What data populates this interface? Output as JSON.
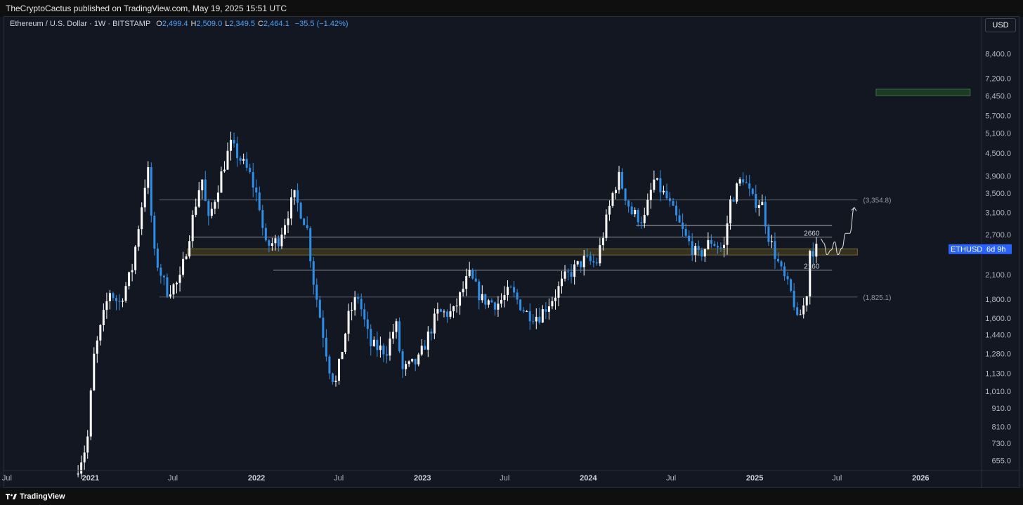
{
  "header": {
    "published": "TheCryptoCactus published on TradingView.com, May 19, 2025 15:51 UTC"
  },
  "legend": {
    "symbol": "Ethereum / U.S. Dollar · 1W · BITSTAMP",
    "o_label": "O",
    "o_value": "2,499.4",
    "h_label": "H",
    "h_value": "2,509.0",
    "l_label": "L",
    "l_value": "2,349.5",
    "c_label": "C",
    "c_value": "2,464.1",
    "change": "−35.5 (−1.42%)"
  },
  "currency_button": "USD",
  "footer": {
    "brand": "TradingView",
    "logo_icon": "tradingview-logo-icon"
  },
  "colors": {
    "background": "#131722",
    "up": "#ffffff",
    "down": "#2f8fe8",
    "zone_fill": "#3a3620",
    "zone_border": "#7a6e3a",
    "target_box": "#1e3a24",
    "target_box_border": "#3b6e44",
    "price_label_bg": "#2962ff"
  },
  "chart_data": {
    "type": "candlestick",
    "symbol": "ETHUSD",
    "timeframe": "1W",
    "price_scale": "log",
    "x_range": [
      "2020-06-25",
      "2026-05-15"
    ],
    "y_range": [
      620,
      9600
    ],
    "x_ticks": [
      {
        "date": "2020-07-01",
        "label": "Jul",
        "bold": false
      },
      {
        "date": "2021-01-01",
        "label": "2021",
        "bold": true
      },
      {
        "date": "2021-07-01",
        "label": "Jul",
        "bold": false
      },
      {
        "date": "2022-01-01",
        "label": "2022",
        "bold": true
      },
      {
        "date": "2022-07-01",
        "label": "Jul",
        "bold": false
      },
      {
        "date": "2023-01-01",
        "label": "2023",
        "bold": true
      },
      {
        "date": "2023-07-01",
        "label": "Jul",
        "bold": false
      },
      {
        "date": "2024-01-01",
        "label": "2024",
        "bold": true
      },
      {
        "date": "2024-07-01",
        "label": "Jul",
        "bold": false
      },
      {
        "date": "2025-01-01",
        "label": "2025",
        "bold": true
      },
      {
        "date": "2025-07-01",
        "label": "Jul",
        "bold": false
      },
      {
        "date": "2026-01-01",
        "label": "2026",
        "bold": true
      }
    ],
    "y_ticks": [
      {
        "value": 8400,
        "label": "8,400.0"
      },
      {
        "value": 7200,
        "label": "7,200.0"
      },
      {
        "value": 6450,
        "label": "6,450.0"
      },
      {
        "value": 5700,
        "label": "5,700.0"
      },
      {
        "value": 5100,
        "label": "5,100.0"
      },
      {
        "value": 4500,
        "label": "4,500.0"
      },
      {
        "value": 3900,
        "label": "3,900.0"
      },
      {
        "value": 3500,
        "label": "3,500.0"
      },
      {
        "value": 3100,
        "label": "3,100.0"
      },
      {
        "value": 2700,
        "label": "2,700.0"
      },
      {
        "value": 2100,
        "label": "2,100.0"
      },
      {
        "value": 1800,
        "label": "1,800.0"
      },
      {
        "value": 1600,
        "label": "1,600.0"
      },
      {
        "value": 1440,
        "label": "1,440.0"
      },
      {
        "value": 1280,
        "label": "1,280.0"
      },
      {
        "value": 1130,
        "label": "1,130.0"
      },
      {
        "value": 1010,
        "label": "1,010.0"
      },
      {
        "value": 910,
        "label": "910.0"
      },
      {
        "value": 810,
        "label": "810.0"
      },
      {
        "value": 730,
        "label": "730.0"
      },
      {
        "value": 655,
        "label": "655.0"
      }
    ],
    "price_path": [
      [
        "2020-12-01",
        600
      ],
      [
        "2020-12-28",
        730
      ],
      [
        "2021-01-11",
        1240
      ],
      [
        "2021-02-15",
        1900
      ],
      [
        "2021-03-08",
        1750
      ],
      [
        "2021-04-05",
        2150
      ],
      [
        "2021-05-10",
        4150
      ],
      [
        "2021-05-24",
        2400
      ],
      [
        "2021-06-21",
        1900
      ],
      [
        "2021-07-19",
        2000
      ],
      [
        "2021-08-23",
        3250
      ],
      [
        "2021-09-06",
        3900
      ],
      [
        "2021-09-20",
        2900
      ],
      [
        "2021-10-18",
        3900
      ],
      [
        "2021-11-08",
        4750
      ],
      [
        "2021-11-29",
        4350
      ],
      [
        "2021-12-20",
        3950
      ],
      [
        "2022-01-10",
        3300
      ],
      [
        "2022-01-24",
        2500
      ],
      [
        "2022-02-21",
        2600
      ],
      [
        "2022-03-28",
        3450
      ],
      [
        "2022-04-25",
        2850
      ],
      [
        "2022-05-09",
        2050
      ],
      [
        "2022-06-13",
        1180
      ],
      [
        "2022-06-27",
        1050
      ],
      [
        "2022-07-25",
        1600
      ],
      [
        "2022-08-15",
        1850
      ],
      [
        "2022-09-12",
        1350
      ],
      [
        "2022-10-17",
        1300
      ],
      [
        "2022-11-07",
        1550
      ],
      [
        "2022-11-21",
        1150
      ],
      [
        "2022-12-26",
        1220
      ],
      [
        "2023-02-06",
        1650
      ],
      [
        "2023-03-13",
        1650
      ],
      [
        "2023-04-17",
        2100
      ],
      [
        "2023-05-15",
        1800
      ],
      [
        "2023-06-19",
        1750
      ],
      [
        "2023-07-17",
        1900
      ],
      [
        "2023-08-21",
        1650
      ],
      [
        "2023-09-18",
        1620
      ],
      [
        "2023-10-23",
        1850
      ],
      [
        "2023-11-13",
        2050
      ],
      [
        "2023-12-25",
        2300
      ],
      [
        "2024-01-22",
        2250
      ],
      [
        "2024-02-26",
        3450
      ],
      [
        "2024-03-11",
        3900
      ],
      [
        "2024-04-08",
        3100
      ],
      [
        "2024-05-06",
        2950
      ],
      [
        "2024-05-27",
        3800
      ],
      [
        "2024-06-24",
        3400
      ],
      [
        "2024-08-05",
        2650
      ],
      [
        "2024-09-02",
        2350
      ],
      [
        "2024-09-30",
        2600
      ],
      [
        "2024-10-28",
        2450
      ],
      [
        "2024-11-11",
        3300
      ],
      [
        "2024-12-09",
        3900
      ],
      [
        "2024-12-30",
        3350
      ],
      [
        "2025-01-20",
        3300
      ],
      [
        "2025-02-03",
        2700
      ],
      [
        "2025-03-03",
        2150
      ],
      [
        "2025-03-31",
        1800
      ],
      [
        "2025-04-07",
        1550
      ],
      [
        "2025-04-28",
        1800
      ],
      [
        "2025-05-05",
        2450
      ],
      [
        "2025-05-19",
        2464
      ]
    ],
    "price_label": {
      "symbol": "ETHUSD",
      "countdown": "6d 9h",
      "value": 2464.1
    },
    "annotations": {
      "zone": {
        "from": "2021-08-02",
        "to": "2025-08-15",
        "low": 2375,
        "high": 2470
      },
      "target_box": {
        "from": "2025-09-25",
        "to": "2026-04-20",
        "low": 6450,
        "high": 6720
      },
      "levels": [
        {
          "value": 3354.8,
          "from": "2021-06-01",
          "to": "2025-08-15",
          "label": "(3,354.8)",
          "muted": true
        },
        {
          "value": 2860,
          "from": "2024-04-15",
          "to": "2025-06-20",
          "label": "",
          "muted": false
        },
        {
          "value": 2660,
          "from": "2021-08-09",
          "to": "2025-06-20",
          "label": "2660",
          "muted": false
        },
        {
          "value": 2160,
          "from": "2022-02-07",
          "to": "2025-06-20",
          "label": "2160",
          "muted": false
        },
        {
          "value": 1825.1,
          "from": "2021-06-01",
          "to": "2025-08-15",
          "label": "(1,825.1)",
          "muted": true
        }
      ],
      "projection": [
        [
          "2025-05-26",
          2630
        ],
        [
          "2025-06-02",
          2560
        ],
        [
          "2025-06-09",
          2380
        ],
        [
          "2025-06-18",
          2450
        ],
        [
          "2025-06-26",
          2580
        ],
        [
          "2025-07-03",
          2380
        ],
        [
          "2025-07-12",
          2480
        ],
        [
          "2025-07-20",
          2720
        ],
        [
          "2025-07-29",
          2720
        ],
        [
          "2025-08-08",
          3200
        ]
      ]
    }
  }
}
